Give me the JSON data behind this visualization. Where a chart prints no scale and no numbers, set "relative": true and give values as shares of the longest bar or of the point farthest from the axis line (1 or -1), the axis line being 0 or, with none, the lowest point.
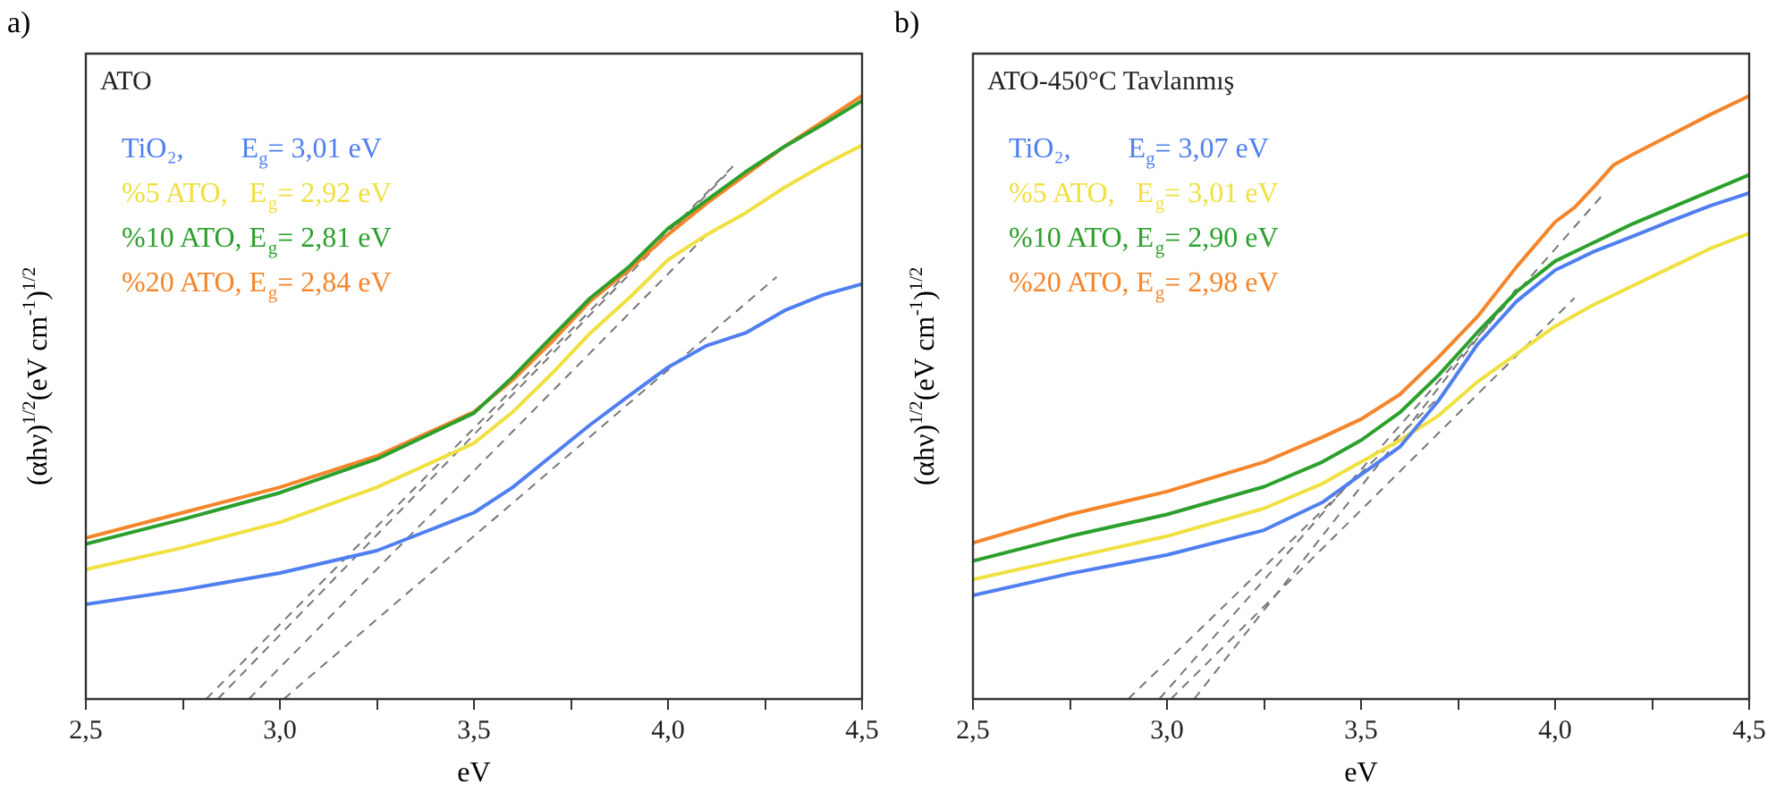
{
  "chart_data": [
    {
      "type": "line",
      "title": "a)",
      "xlabel": "eV",
      "ylabel": "(αhν)$^{1/2}$(eV cm$^{-1}$)$^{1/2}$",
      "relative": true,
      "marker": "none",
      "legend": "top left",
      "annotations": [
        "ATO"
      ],
      "xlim": [
        2.5,
        4.5
      ],
      "xticks": [
        {
          "value": 2.5,
          "label": "2,5"
        },
        {
          "value": 2.75,
          "label": null
        },
        {
          "value": 3.0,
          "label": "3,0"
        },
        {
          "value": 3.25,
          "label": null
        },
        {
          "value": 3.5,
          "label": "3,5"
        },
        {
          "value": 3.75,
          "label": null
        },
        {
          "value": 4.0,
          "label": "4,0"
        },
        {
          "value": 4.25,
          "label": null
        },
        {
          "value": 4.5,
          "label": "4,5"
        }
      ],
      "series": [
        {
          "name": "TiO₂,        E$_{g}$= 3,01 eV",
          "color": "#4f7ff0",
          "x": [
            2.5,
            2.75,
            3.0,
            3.25,
            3.5,
            3.6,
            3.7,
            3.8,
            3.9,
            4.0,
            4.1,
            4.2,
            4.3,
            4.4,
            4.5
          ],
          "values": [
            0.157,
            0.181,
            0.209,
            0.246,
            0.309,
            0.351,
            0.403,
            0.455,
            0.503,
            0.55,
            0.586,
            0.607,
            0.644,
            0.67,
            0.688
          ]
        },
        {
          "name": "%5 ATO,   E$_{g}$= 2,92 eV",
          "color": "#f0e040",
          "x": [
            2.5,
            2.75,
            3.0,
            3.25,
            3.5,
            3.6,
            3.7,
            3.8,
            3.9,
            4.0,
            4.1,
            4.2,
            4.3,
            4.4,
            4.5
          ],
          "values": [
            0.215,
            0.251,
            0.293,
            0.351,
            0.424,
            0.476,
            0.539,
            0.607,
            0.665,
            0.728,
            0.77,
            0.806,
            0.848,
            0.885,
            0.918
          ]
        },
        {
          "name": "%10 ATO, E$_{g}$= 2,81 eV",
          "color": "#2ca02c",
          "x": [
            2.5,
            2.75,
            3.0,
            3.25,
            3.5,
            3.6,
            3.7,
            3.8,
            3.9,
            4.0,
            4.1,
            4.2,
            4.3,
            4.4,
            4.5
          ],
          "values": [
            0.257,
            0.298,
            0.342,
            0.398,
            0.474,
            0.534,
            0.6,
            0.665,
            0.717,
            0.78,
            0.827,
            0.874,
            0.916,
            0.953,
            0.992
          ]
        },
        {
          "name": "%20 ATO, E$_{g}$= 2,84 eV",
          "color": "#f5852a",
          "x": [
            2.5,
            2.75,
            3.0,
            3.25,
            3.5,
            3.6,
            3.7,
            3.8,
            3.9,
            4.0,
            4.1,
            4.2,
            4.3,
            4.4,
            4.5
          ],
          "values": [
            0.267,
            0.309,
            0.351,
            0.403,
            0.476,
            0.529,
            0.592,
            0.66,
            0.712,
            0.77,
            0.822,
            0.869,
            0.916,
            0.958,
            1
          ]
        },
        {
          "type": "line",
          "color": "#777777",
          "line_style": "dashed",
          "x": [
            3.01,
            4.28
          ],
          "values": [
            0,
            0.7
          ]
        },
        {
          "type": "line",
          "color": "#777777",
          "line_style": "dashed",
          "x": [
            2.92,
            4.1
          ],
          "values": [
            0,
            0.77
          ]
        },
        {
          "type": "line",
          "color": "#777777",
          "line_style": "dashed",
          "x": [
            2.81,
            4.17
          ],
          "values": [
            0,
            0.885
          ]
        },
        {
          "type": "line",
          "color": "#777777",
          "line_style": "dashed",
          "x": [
            2.84,
            4.15
          ],
          "values": [
            0,
            0.87
          ]
        }
      ]
    },
    {
      "type": "line",
      "title": "b)",
      "xlabel": "eV",
      "ylabel": "(αhν)$^{1/2}$(eV cm$^{-1}$)$^{1/2}$",
      "relative": true,
      "marker": "none",
      "legend": "top left",
      "annotations": [
        "ATO-450°C Tavlanmış"
      ],
      "xlim": [
        2.5,
        4.5
      ],
      "xticks": [
        {
          "value": 2.5,
          "label": "2,5"
        },
        {
          "value": 2.75,
          "label": null
        },
        {
          "value": 3.0,
          "label": "3,0"
        },
        {
          "value": 3.25,
          "label": null
        },
        {
          "value": 3.5,
          "label": "3,5"
        },
        {
          "value": 3.75,
          "label": null
        },
        {
          "value": 4.0,
          "label": "4,0"
        },
        {
          "value": 4.25,
          "label": null
        },
        {
          "value": 4.5,
          "label": "4,5"
        }
      ],
      "series": [
        {
          "name": "TiO₂,        E$_{g}$= 3,07 eV",
          "color": "#4f7ff0",
          "x": [
            2.5,
            2.75,
            3.0,
            3.25,
            3.4,
            3.5,
            3.6,
            3.7,
            3.8,
            3.9,
            4.0,
            4.1,
            4.2,
            4.3,
            4.4,
            4.5
          ],
          "values": [
            0.172,
            0.208,
            0.239,
            0.28,
            0.326,
            0.372,
            0.418,
            0.495,
            0.588,
            0.659,
            0.711,
            0.742,
            0.767,
            0.793,
            0.818,
            0.839
          ]
        },
        {
          "name": "%5 ATO,   E$_{g}$= 3,01 eV",
          "color": "#f0e040",
          "x": [
            2.5,
            2.75,
            3.0,
            3.25,
            3.4,
            3.5,
            3.6,
            3.7,
            3.8,
            3.9,
            4.0,
            4.1,
            4.2,
            4.3,
            4.4,
            4.5
          ],
          "values": [
            0.198,
            0.234,
            0.27,
            0.316,
            0.357,
            0.393,
            0.429,
            0.47,
            0.526,
            0.572,
            0.618,
            0.654,
            0.685,
            0.716,
            0.747,
            0.772
          ]
        },
        {
          "name": "%10 ATO, E$_{g}$= 2,90 eV",
          "color": "#2ca02c",
          "x": [
            2.5,
            2.75,
            3.0,
            3.25,
            3.4,
            3.5,
            3.6,
            3.7,
            3.8,
            3.9,
            4.0,
            4.1,
            4.2,
            4.3,
            4.4,
            4.5
          ],
          "values": [
            0.229,
            0.27,
            0.306,
            0.352,
            0.393,
            0.429,
            0.475,
            0.537,
            0.608,
            0.675,
            0.726,
            0.757,
            0.788,
            0.815,
            0.842,
            0.869
          ]
        },
        {
          "name": "%20 ATO, E$_{g}$= 2,98 eV",
          "color": "#f5852a",
          "x": [
            2.5,
            2.75,
            3.0,
            3.25,
            3.4,
            3.5,
            3.6,
            3.7,
            3.8,
            3.9,
            4.0,
            4.05,
            4.1,
            4.15,
            4.2,
            4.3,
            4.4,
            4.5
          ],
          "values": [
            0.259,
            0.306,
            0.344,
            0.393,
            0.434,
            0.464,
            0.505,
            0.567,
            0.634,
            0.716,
            0.791,
            0.815,
            0.849,
            0.885,
            0.903,
            0.936,
            0.969,
            1
          ]
        },
        {
          "type": "line",
          "color": "#777777",
          "line_style": "dashed",
          "x": [
            3.07,
            3.9
          ],
          "values": [
            0,
            0.68
          ]
        },
        {
          "type": "line",
          "color": "#777777",
          "line_style": "dashed",
          "x": [
            3.01,
            4.05
          ],
          "values": [
            0,
            0.665
          ]
        },
        {
          "type": "line",
          "color": "#777777",
          "line_style": "dashed",
          "x": [
            2.9,
            3.7
          ],
          "values": [
            0,
            0.5
          ]
        },
        {
          "type": "line",
          "color": "#777777",
          "line_style": "dashed",
          "x": [
            2.98,
            4.12
          ],
          "values": [
            0,
            0.834
          ]
        }
      ]
    }
  ]
}
